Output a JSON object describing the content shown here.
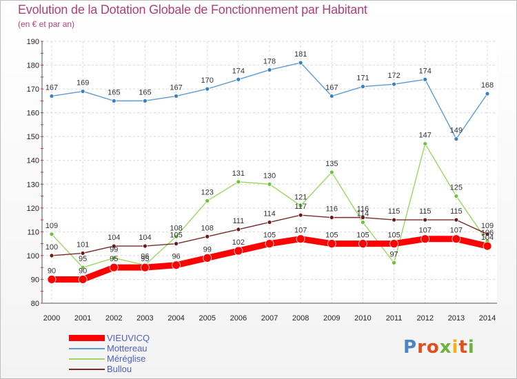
{
  "header": {
    "title": "Evolution de la Dotation Globale de Fonctionnement par Habitant",
    "subtitle": "(en € et par an)"
  },
  "branding": {
    "logo_text": "Proxiti",
    "logo_colors": [
      "#4a86c5",
      "#e0501e",
      "#e0501e",
      "#6ab43c",
      "#f0b020",
      "#e0501e",
      "#6ab43c"
    ]
  },
  "chart_data": {
    "type": "line",
    "title": "Evolution de la Dotation Globale de Fonctionnement par Habitant",
    "subtitle": "(en € et par an)",
    "xlabel": "",
    "ylabel": "",
    "ylim": [
      80,
      190
    ],
    "yticks": [
      80,
      90,
      100,
      110,
      120,
      130,
      140,
      150,
      160,
      170,
      180,
      190
    ],
    "grid": true,
    "legend_position": "bottom-left",
    "categories": [
      "2000",
      "2001",
      "2002",
      "2003",
      "2004",
      "2005",
      "2006",
      "2007",
      "2008",
      "2009",
      "2010",
      "2011",
      "2012",
      "2013",
      "2014"
    ],
    "series": [
      {
        "name": "Mottereau",
        "color": "#5b9bd5",
        "marker": "#3a7fc0",
        "values": [
          167,
          169,
          165,
          165,
          167,
          170,
          174,
          178,
          181,
          167,
          171,
          172,
          174,
          149,
          168
        ]
      },
      {
        "name": "Méréglise",
        "color": "#9ad860",
        "marker": "#6cc23a",
        "values": [
          109,
          95,
          99,
          96,
          108,
          123,
          131,
          130,
          121,
          135,
          114,
          97,
          147,
          125,
          106
        ]
      },
      {
        "name": "Bullou",
        "color": "#7a2a2a",
        "marker": "#6a1a1a",
        "values": [
          100,
          101,
          104,
          104,
          105,
          108,
          111,
          114,
          117,
          116,
          116,
          115,
          115,
          115,
          109
        ]
      },
      {
        "name": "VIEUVICQ",
        "color": "#ff0000",
        "marker": "#ff0000",
        "values": [
          90,
          90,
          95,
          95,
          96,
          99,
          102,
          105,
          107,
          105,
          105,
          105,
          107,
          107,
          104
        ]
      }
    ],
    "legend_order": [
      "VIEUVICQ",
      "Mottereau",
      "Méréglise",
      "Bullou"
    ]
  }
}
